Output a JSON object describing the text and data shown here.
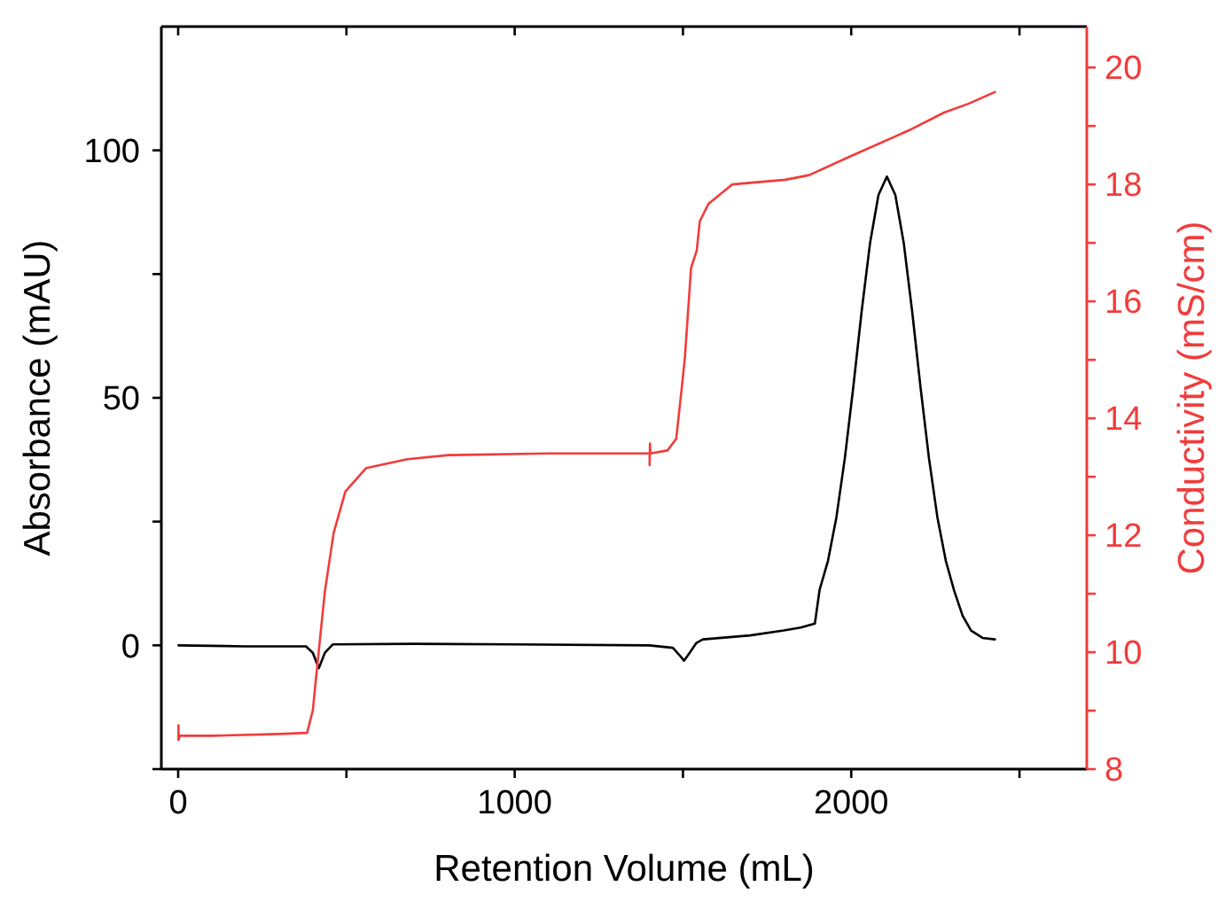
{
  "chart_data": {
    "type": "line",
    "xlabel": "Retention Volume (mL)",
    "ylabel": "Absorbance (mAU)",
    "y2label": "Conductivity (mS/cm)",
    "xlim": [
      -50,
      2700
    ],
    "xticks": [
      0,
      {
        "value": 500,
        "label": null
      },
      1000,
      {
        "value": 1500,
        "label": null
      },
      2000,
      {
        "value": 2500,
        "label": null
      }
    ],
    "ylim": [
      -25,
      125
    ],
    "yticks": [
      {
        "value": -25,
        "label": null
      },
      0,
      {
        "value": 25,
        "label": null
      },
      50,
      {
        "value": 75,
        "label": null
      },
      100
    ],
    "y2lim": [
      8,
      20.7
    ],
    "y2ticks": [
      8,
      {
        "value": 9,
        "label": null
      },
      10,
      {
        "value": 11,
        "label": null
      },
      12,
      {
        "value": 13,
        "label": null
      },
      14,
      {
        "value": 15,
        "label": null
      },
      16,
      {
        "value": 17,
        "label": null
      },
      18,
      {
        "value": 19,
        "label": null
      },
      20
    ],
    "grid": false,
    "line_style": "solid",
    "marker": "none",
    "series": [
      {
        "color": "#000000",
        "x": [
          1,
          200,
          380,
          400,
          418,
          436,
          460,
          700,
          1000,
          1400,
          1470,
          1490,
          1503,
          1520,
          1540,
          1559,
          1700,
          1800,
          1850,
          1892,
          1906,
          1931,
          1956,
          1981,
          2006,
          2031,
          2056,
          2081,
          2106,
          2131,
          2156,
          2181,
          2206,
          2231,
          2256,
          2281,
          2306,
          2331,
          2356,
          2390,
          2427
        ],
        "values": [
          0,
          -0.2,
          -0.2,
          -1.5,
          -4.6,
          -1.5,
          0.2,
          0.3,
          0.2,
          0,
          -0.5,
          -2,
          -3.1,
          -1.5,
          0.5,
          1.2,
          2,
          3,
          3.6,
          4.4,
          11.2,
          17.1,
          25.9,
          37.8,
          52.1,
          67.5,
          81.3,
          91,
          94.7,
          91,
          81.3,
          67.5,
          52.1,
          37.8,
          25.9,
          17.1,
          11,
          6,
          3,
          1.5,
          1.2
        ]
      },
      {
        "color": "#f23b3b",
        "axis": "y2",
        "x": [
          1,
          1,
          5,
          100,
          300,
          383,
          400,
          418,
          436,
          462,
          497,
          559,
          681,
          804,
          1100,
          1401,
          1401,
          1402,
          1403,
          1454,
          1480,
          1497,
          1506,
          1524,
          1541,
          1550,
          1576,
          1646,
          1804,
          1875,
          1997,
          2173,
          2276,
          2348,
          2427
        ],
        "values": [
          8.75,
          8.5,
          8.57,
          8.57,
          8.6,
          8.62,
          9.0,
          10.03,
          11.04,
          12.04,
          12.75,
          13.15,
          13.3,
          13.37,
          13.4,
          13.4,
          13.2,
          13.57,
          13.4,
          13.45,
          13.65,
          14.55,
          15.06,
          16.57,
          16.87,
          17.37,
          17.67,
          18.0,
          18.08,
          18.16,
          18.48,
          18.93,
          19.23,
          19.38,
          19.58
        ]
      }
    ]
  }
}
